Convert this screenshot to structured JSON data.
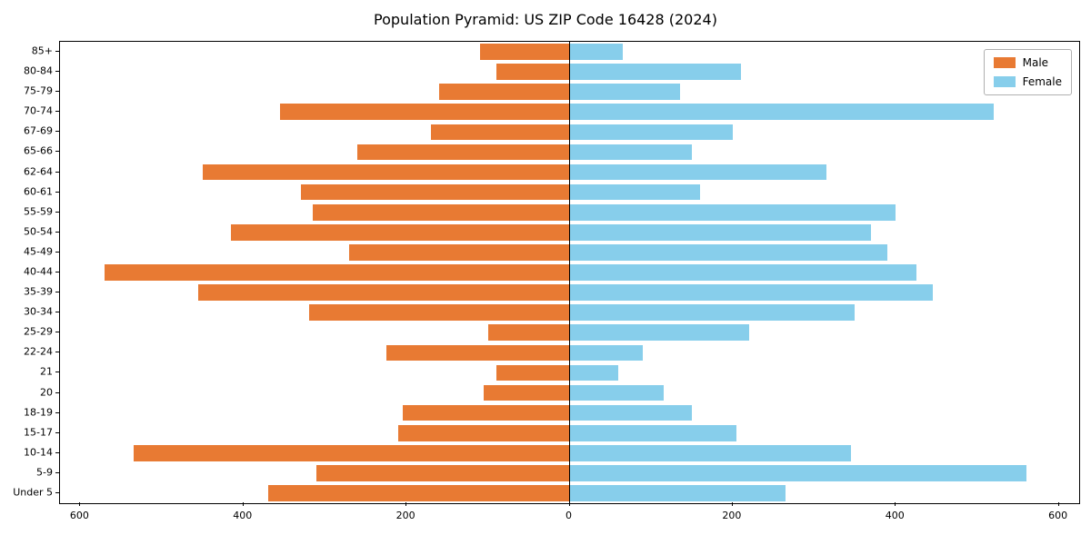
{
  "title": "Population Pyramid: US ZIP Code 16428 (2024)",
  "legend": {
    "male_label": "Male",
    "female_label": "Female"
  },
  "colors": {
    "male": "#E87A33",
    "female": "#87CEEB",
    "axis": "#000000",
    "background": "#ffffff"
  },
  "chart_data": {
    "type": "bar",
    "orientation": "horizontal-pyramid",
    "title": "Population Pyramid: US ZIP Code 16428 (2024)",
    "xlabel": "",
    "ylabel": "",
    "categories_top_to_bottom": [
      "85+",
      "80-84",
      "75-79",
      "70-74",
      "67-69",
      "65-66",
      "62-64",
      "60-61",
      "55-59",
      "50-54",
      "45-49",
      "40-44",
      "35-39",
      "30-34",
      "25-29",
      "22-24",
      "21",
      "20",
      "18-19",
      "15-17",
      "10-14",
      "5-9",
      "Under 5"
    ],
    "series": [
      {
        "name": "Male",
        "side": "left",
        "values": [
          110,
          90,
          160,
          355,
          170,
          260,
          450,
          330,
          315,
          415,
          270,
          570,
          455,
          320,
          100,
          225,
          90,
          105,
          205,
          210,
          535,
          310,
          370
        ]
      },
      {
        "name": "Female",
        "side": "right",
        "values": [
          65,
          210,
          135,
          520,
          200,
          150,
          315,
          160,
          400,
          370,
          390,
          425,
          445,
          350,
          220,
          90,
          60,
          115,
          150,
          205,
          345,
          560,
          265
        ]
      }
    ],
    "xlim": [
      -625,
      625
    ],
    "xtick_values": [
      -600,
      -400,
      -200,
      0,
      200,
      400,
      600
    ],
    "xtick_labels": [
      "600",
      "400",
      "200",
      "0",
      "200",
      "400",
      "600"
    ],
    "bar_fraction": 0.8,
    "grid": false,
    "legend_position": "upper right"
  }
}
